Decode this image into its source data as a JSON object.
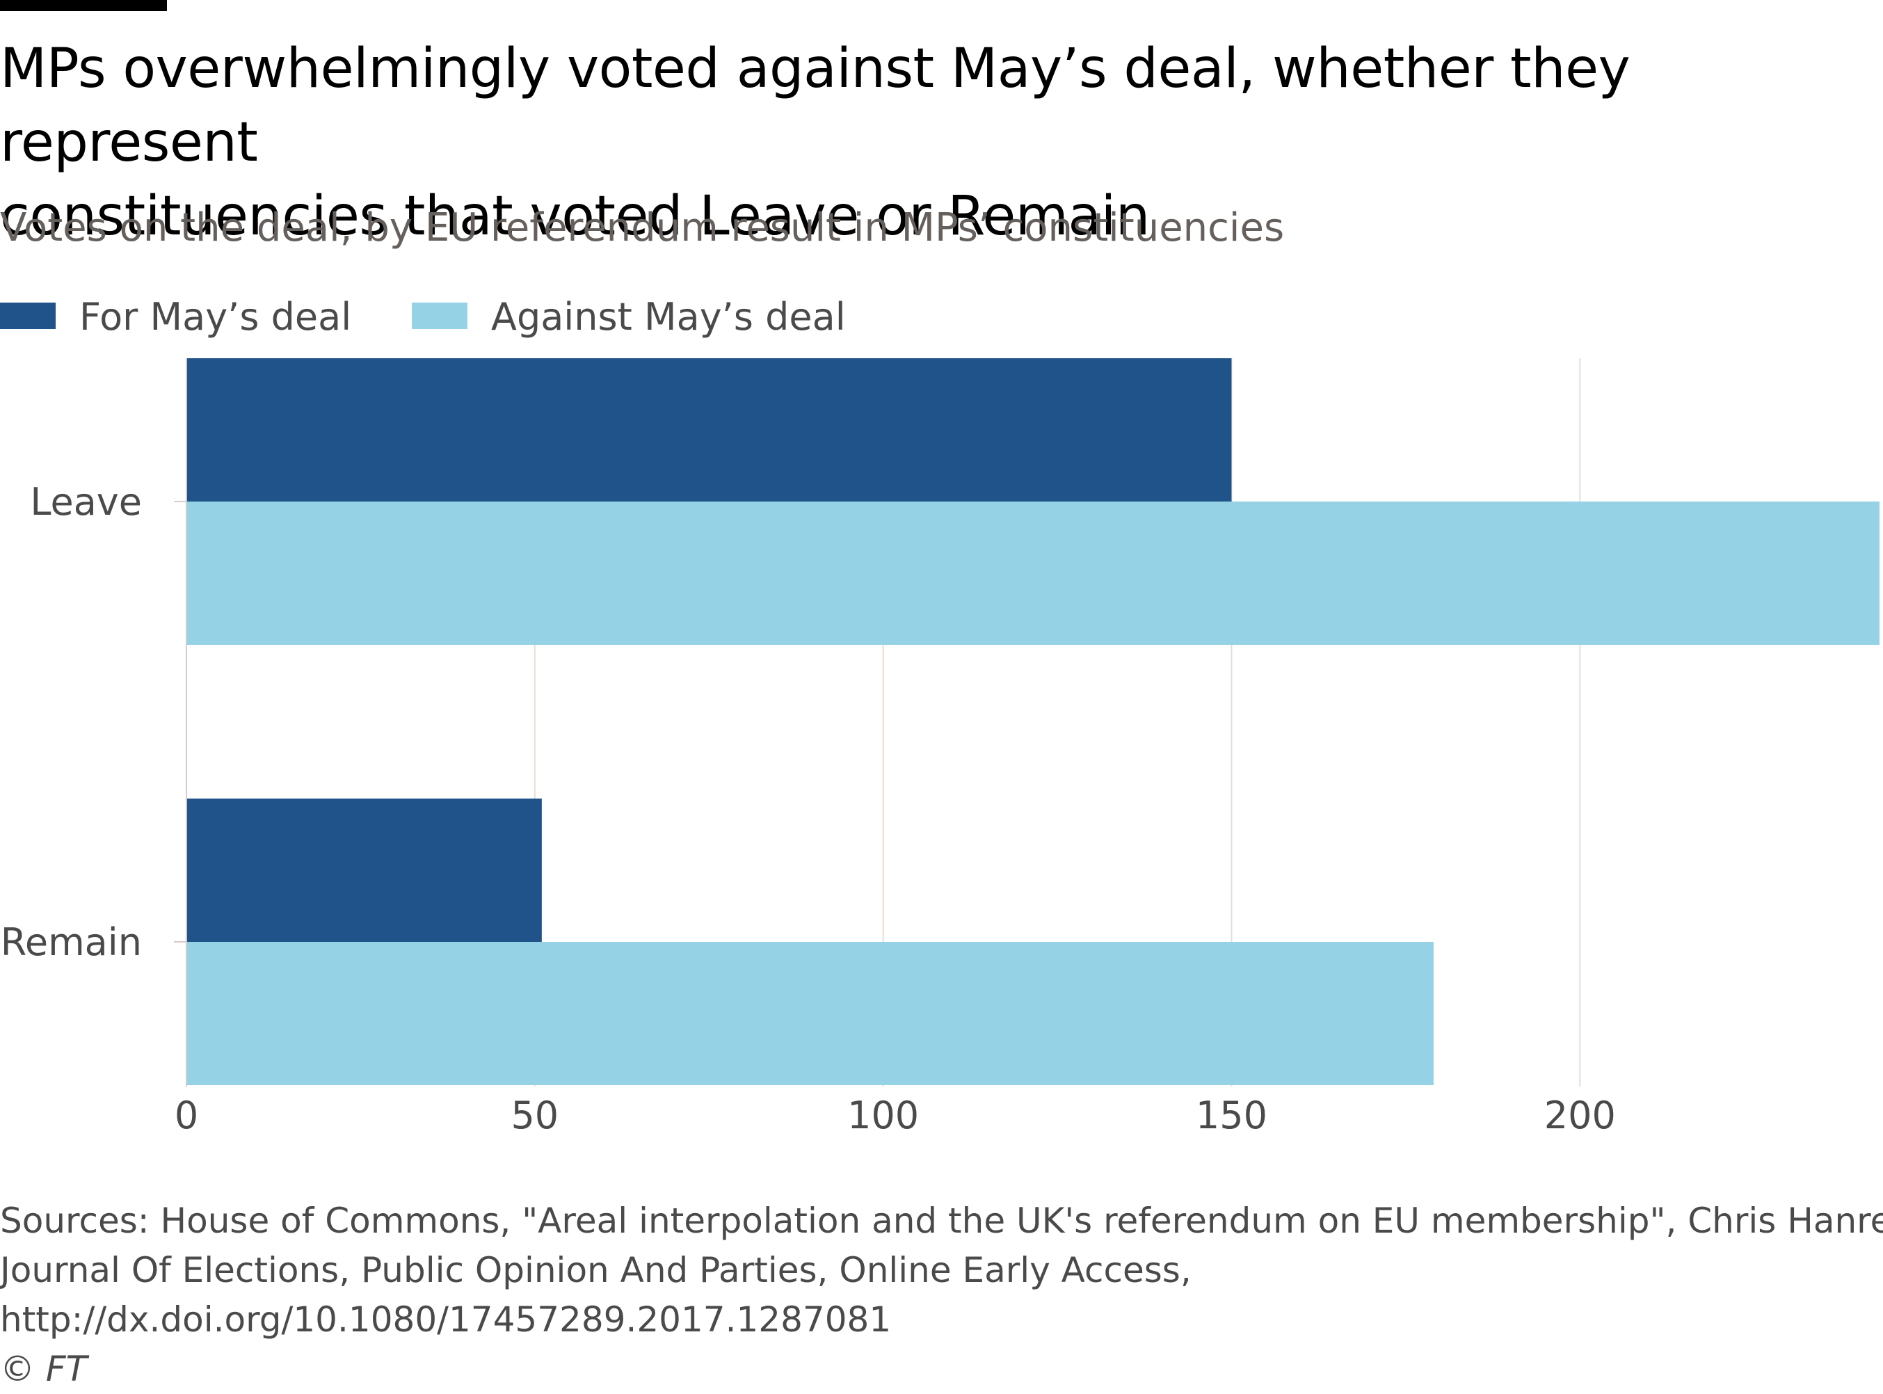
{
  "header": {
    "title_line1": "MPs overwhelmingly voted against May’s deal, whether they represent",
    "title_line2": "constituencies that voted Leave or Remain",
    "subtitle": "Votes on the deal, by EU referendum result in MPs’ constituencies"
  },
  "legend": [
    {
      "label": "For May’s deal",
      "color": "#1f538a"
    },
    {
      "label": "Against May’s deal",
      "color": "#96d2e6"
    }
  ],
  "chart_data": {
    "type": "bar",
    "orientation": "horizontal",
    "title": "MPs overwhelmingly voted against May’s deal, whether they represent constituencies that voted Leave or Remain",
    "subtitle": "Votes on the deal, by EU referendum result in MPs’ constituencies",
    "categories": [
      "Leave",
      "Remain"
    ],
    "series": [
      {
        "name": "For May’s deal",
        "color": "#1f538a",
        "values": [
          150,
          51
        ]
      },
      {
        "name": "Against May’s deal",
        "color": "#96d2e6",
        "values": [
          243,
          179
        ]
      }
    ],
    "xlim": [
      0,
      243
    ],
    "xticks": [
      0,
      50,
      100,
      150,
      200
    ],
    "xlabel": "",
    "ylabel": "",
    "grid": true,
    "legend_position": "top-left"
  },
  "footer": {
    "source_line1": "Sources: House of Commons, \"Areal interpolation and the UK's referendum on EU membership\", Chris Hanretty,",
    "source_line2": "Journal Of Elections, Public Opinion And Parties, Online Early Access,",
    "source_line3": "http://dx.doi.org/10.1080/17457289.2017.1287081",
    "credit": "© FT"
  }
}
